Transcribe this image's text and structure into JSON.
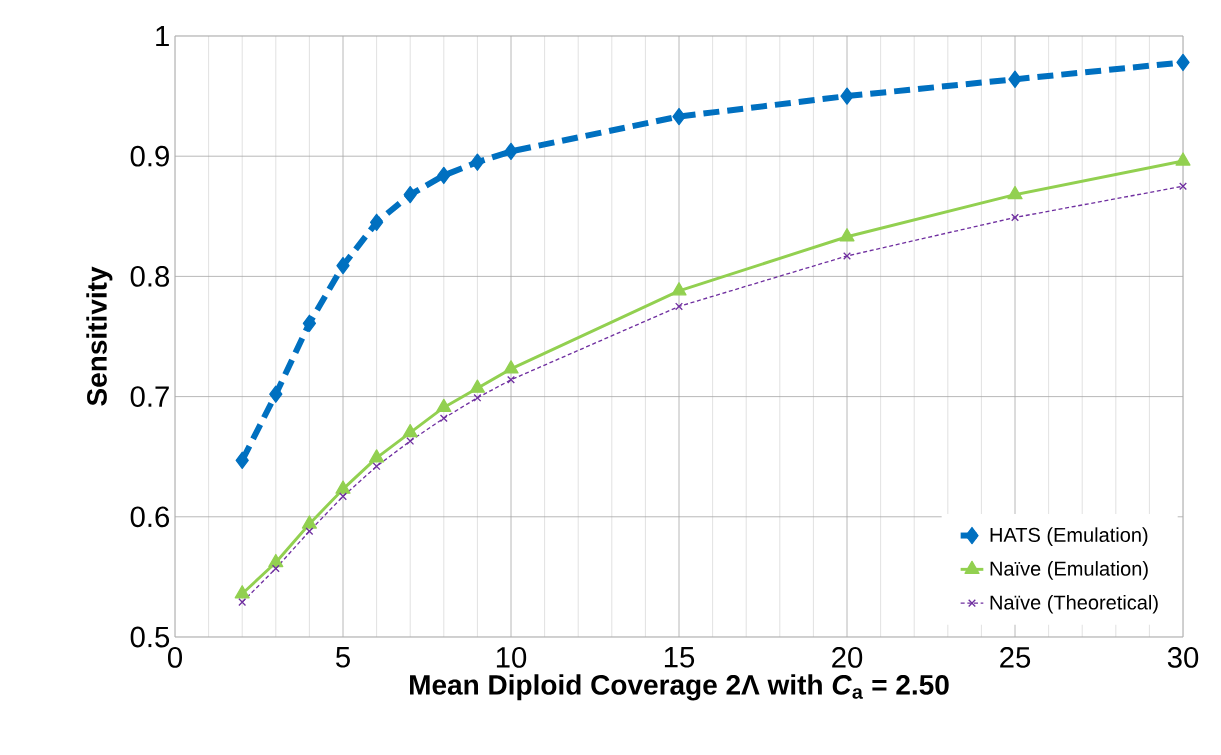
{
  "chart_data": {
    "type": "line",
    "xlabel": "Mean Diploid Coverage 2Λ with *C*$_{a}$ = 2.50",
    "ylabel": "Sensitivity",
    "x": [
      2,
      3,
      4,
      5,
      6,
      7,
      8,
      9,
      10,
      15,
      20,
      25,
      30
    ],
    "series": [
      {
        "name": "HATS (Emulation)",
        "color": "#0070c0",
        "marker": "diamond",
        "line_style": "dashed",
        "values": [
          0.647,
          0.702,
          0.761,
          0.809,
          0.845,
          0.868,
          0.884,
          0.895,
          0.904,
          0.933,
          0.95,
          0.964,
          0.978
        ]
      },
      {
        "name": "Naïve (Emulation)",
        "color": "#92d050",
        "marker": "triangle",
        "line_style": "solid",
        "values": [
          0.536,
          0.562,
          0.594,
          0.623,
          0.649,
          0.67,
          0.691,
          0.707,
          0.723,
          0.788,
          0.833,
          0.868,
          0.896
        ]
      },
      {
        "name": "Naïve (Theoretical)",
        "color": "#7030a0",
        "marker": "cross",
        "line_style": "dotted",
        "values": [
          0.529,
          0.557,
          0.588,
          0.617,
          0.642,
          0.663,
          0.682,
          0.699,
          0.714,
          0.775,
          0.817,
          0.849,
          0.875
        ]
      }
    ],
    "xlim": [
      0,
      30
    ],
    "ylim": [
      0.5,
      1
    ],
    "xticks": [
      0,
      5,
      10,
      15,
      20,
      25,
      30
    ],
    "yticks": [
      0.5,
      0.6,
      0.7,
      0.8,
      0.9,
      1
    ],
    "grid": true,
    "legend": "bottom right"
  }
}
